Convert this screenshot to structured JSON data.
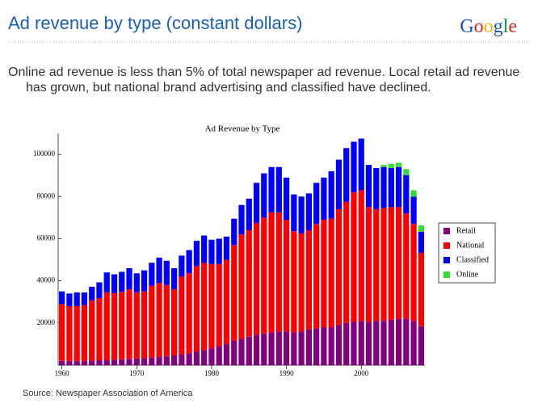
{
  "header": {
    "title": "Ad revenue by type (constant dollars)",
    "logo": "Google"
  },
  "description": "Online ad revenue is less than 5% of total newspaper ad revenue.  Local retail ad revenue has grown, but national brand advertising and classified have declined.",
  "source": "Source: Newspaper Association of America",
  "chart_data": {
    "type": "stacked-bar",
    "title": "Ad Revenue by Type",
    "x": [
      1960,
      1961,
      1962,
      1963,
      1964,
      1965,
      1966,
      1967,
      1968,
      1969,
      1970,
      1971,
      1972,
      1973,
      1974,
      1975,
      1976,
      1977,
      1978,
      1979,
      1980,
      1981,
      1982,
      1983,
      1984,
      1985,
      1986,
      1987,
      1988,
      1989,
      1990,
      1991,
      1992,
      1993,
      1994,
      1995,
      1996,
      1997,
      1998,
      1999,
      2000,
      2001,
      2002,
      2003,
      2004,
      2005,
      2006,
      2007,
      2008
    ],
    "series": [
      {
        "name": "Retail",
        "color": "#800080",
        "values": [
          2000,
          2000,
          2000,
          2000,
          2200,
          2300,
          2500,
          2600,
          2800,
          3000,
          3100,
          3300,
          3600,
          4000,
          4300,
          4600,
          5000,
          5600,
          6500,
          7200,
          8000,
          9000,
          10000,
          11500,
          12500,
          13500,
          14500,
          15000,
          15500,
          16000,
          16000,
          15500,
          16000,
          17000,
          17500,
          18000,
          18000,
          19000,
          20000,
          20500,
          21000,
          20500,
          21000,
          21000,
          21500,
          22000,
          22000,
          21000,
          18500
        ]
      },
      {
        "name": "National",
        "color": "#ff0000",
        "values": [
          27000,
          26000,
          26000,
          26500,
          28500,
          29500,
          32000,
          31500,
          32000,
          33000,
          31500,
          31700,
          34000,
          35000,
          33700,
          31400,
          37000,
          38000,
          40500,
          41300,
          40000,
          39000,
          40000,
          45500,
          49500,
          50500,
          53000,
          55000,
          57000,
          56500,
          53000,
          48000,
          46500,
          47000,
          49500,
          51000,
          51500,
          55000,
          57500,
          61500,
          62000,
          54500,
          53000,
          53500,
          53500,
          53000,
          50000,
          46000,
          34800
        ]
      },
      {
        "name": "Classified",
        "color": "#0000ff",
        "values": [
          6000,
          6000,
          6500,
          6000,
          6500,
          7500,
          9500,
          9000,
          9500,
          10000,
          9000,
          10000,
          11000,
          12000,
          11500,
          10000,
          10000,
          11000,
          12000,
          13000,
          11500,
          12000,
          11000,
          12500,
          14000,
          15000,
          19000,
          21000,
          21500,
          21500,
          20000,
          17500,
          17500,
          17500,
          19500,
          20000,
          22500,
          23500,
          25500,
          24000,
          24500,
          20000,
          19500,
          19500,
          18500,
          19000,
          18200,
          13000,
          10000
        ]
      },
      {
        "name": "Online",
        "color": "#33dd33",
        "values": [
          null,
          null,
          null,
          null,
          null,
          null,
          null,
          null,
          null,
          null,
          null,
          null,
          null,
          null,
          null,
          null,
          null,
          null,
          null,
          null,
          null,
          null,
          null,
          null,
          null,
          null,
          null,
          null,
          null,
          null,
          null,
          null,
          null,
          null,
          null,
          null,
          null,
          null,
          null,
          null,
          null,
          null,
          null,
          1000,
          2000,
          2000,
          2800,
          3000,
          3000
        ]
      }
    ],
    "xlim": [
      1959.5,
      2008.5
    ],
    "xticks": [
      1960,
      1970,
      1980,
      1990,
      2000
    ],
    "ylim": [
      0,
      110000
    ],
    "yticks": [
      20000,
      40000,
      60000,
      80000,
      100000
    ]
  }
}
